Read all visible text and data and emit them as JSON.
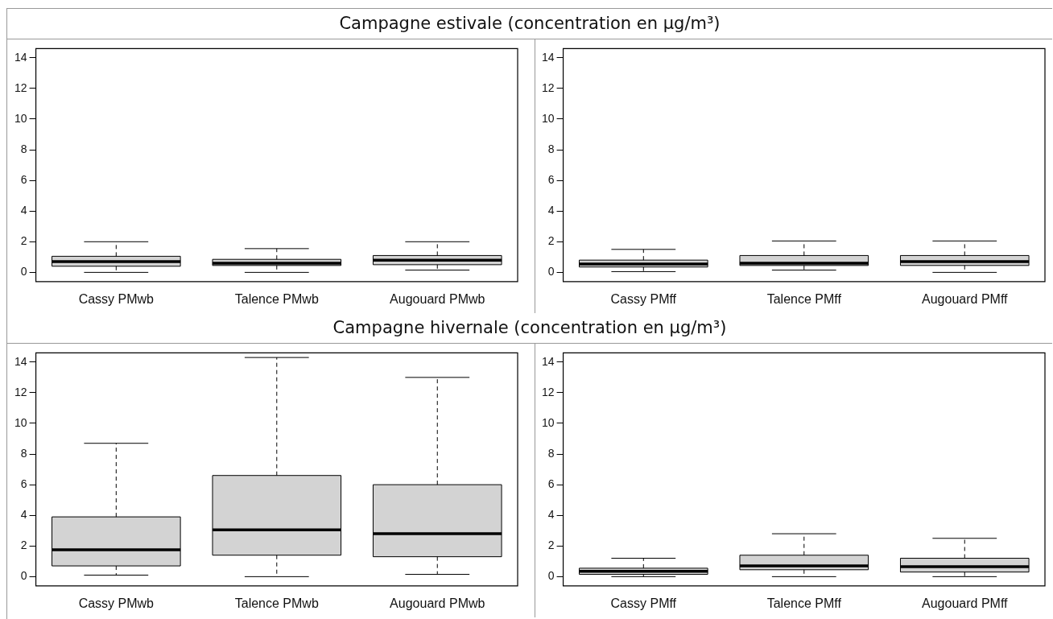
{
  "chart_data": [
    {
      "type": "box",
      "title": "Campagne estivale (concentration en µg/m³)",
      "categories": [
        "Cassy PMwb",
        "Talence PMwb",
        "Augouard PMwb"
      ],
      "color": "#d3d3d3",
      "ylim": [
        -0.6,
        14.6
      ],
      "yticks": [
        0,
        2,
        4,
        6,
        8,
        10,
        12,
        14
      ],
      "grid": false,
      "boxes": [
        {
          "low": 0,
          "q1": 0.4,
          "median": 0.7,
          "q3": 1.05,
          "high": 2.0
        },
        {
          "low": 0,
          "q1": 0.45,
          "median": 0.6,
          "q3": 0.85,
          "high": 1.55
        },
        {
          "low": 0.15,
          "q1": 0.5,
          "median": 0.8,
          "q3": 1.1,
          "high": 2.0
        }
      ]
    },
    {
      "type": "box",
      "categories": [
        "Cassy PMff",
        "Talence PMff",
        "Augouard PMff"
      ],
      "color": "#d3d3d3",
      "ylim": [
        -0.6,
        14.6
      ],
      "yticks": [
        0,
        2,
        4,
        6,
        8,
        10,
        12,
        14
      ],
      "grid": false,
      "boxes": [
        {
          "low": 0.05,
          "q1": 0.35,
          "median": 0.55,
          "q3": 0.8,
          "high": 1.5
        },
        {
          "low": 0.15,
          "q1": 0.45,
          "median": 0.6,
          "q3": 1.1,
          "high": 2.05
        },
        {
          "low": 0,
          "q1": 0.45,
          "median": 0.7,
          "q3": 1.1,
          "high": 2.05
        }
      ]
    },
    {
      "type": "box",
      "title": "Campagne hivernale (concentration en µg/m³)",
      "categories": [
        "Cassy PMwb",
        "Talence PMwb",
        "Augouard PMwb"
      ],
      "color": "#d3d3d3",
      "ylim": [
        -0.6,
        14.6
      ],
      "yticks": [
        0,
        2,
        4,
        6,
        8,
        10,
        12,
        14
      ],
      "grid": false,
      "boxes": [
        {
          "low": 0.1,
          "q1": 0.7,
          "median": 1.75,
          "q3": 3.9,
          "high": 8.7
        },
        {
          "low": 0,
          "q1": 1.4,
          "median": 3.05,
          "q3": 6.6,
          "high": 14.3
        },
        {
          "low": 0.15,
          "q1": 1.3,
          "median": 2.8,
          "q3": 6.0,
          "high": 13.0
        }
      ]
    },
    {
      "type": "box",
      "categories": [
        "Cassy PMff",
        "Talence PMff",
        "Augouard PMff"
      ],
      "color": "#d3d3d3",
      "ylim": [
        -0.6,
        14.6
      ],
      "yticks": [
        0,
        2,
        4,
        6,
        8,
        10,
        12,
        14
      ],
      "grid": false,
      "boxes": [
        {
          "low": 0,
          "q1": 0.15,
          "median": 0.35,
          "q3": 0.55,
          "high": 1.2
        },
        {
          "low": 0,
          "q1": 0.45,
          "median": 0.7,
          "q3": 1.4,
          "high": 2.8
        },
        {
          "low": 0,
          "q1": 0.3,
          "median": 0.65,
          "q3": 1.2,
          "high": 2.5
        }
      ]
    }
  ]
}
